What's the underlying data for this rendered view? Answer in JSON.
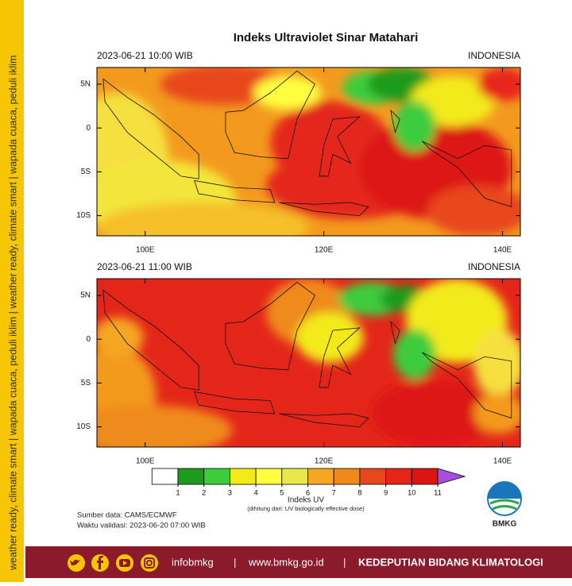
{
  "sidebar": "weather ready, climate smart | wapada cuaca, peduli iklim | weather ready, climate smart | wapada cuaca, peduli iklim",
  "title": "Indeks Ultraviolet Sinar Matahari",
  "panels": [
    {
      "time": "2023-06-21  10:00 WIB",
      "region": "INDONESIA"
    },
    {
      "time": "2023-06-21  11:00 WIB",
      "region": "INDONESIA"
    }
  ],
  "map_axes": {
    "xlim": [
      94.6,
      142
    ],
    "ylim": [
      -12.3,
      6.9
    ],
    "xticks": [
      {
        "value": 100,
        "label": "100E"
      },
      {
        "value": 120,
        "label": "120E"
      },
      {
        "value": 140,
        "label": "140E"
      }
    ],
    "yticks": [
      {
        "value": 5,
        "label": "5N"
      },
      0,
      {
        "value": -5,
        "label": "5S"
      },
      {
        "value": -10,
        "label": "10S"
      }
    ]
  },
  "colorbar": {
    "ticks": [
      1,
      2,
      3,
      4,
      5,
      6,
      7,
      8,
      9,
      10,
      11
    ],
    "colors": [
      "#ffffff",
      "#1e9a1e",
      "#3ccc3c",
      "#f3ea1a",
      "#ffff40",
      "#e8e84a",
      "#f5a623",
      "#ef8a1a",
      "#e8461c",
      "#e4261a",
      "#dd1414"
    ],
    "extend_color": "#a64ee0",
    "label": "Indeks UV",
    "note": "(dihitung dari: UV biologically effective dose)"
  },
  "source": "Sumber data: CAMS/ECMWF",
  "validity": "Waktu validasi: 2023-06-20 07:00 WIB",
  "logo": "BMKG",
  "footer": {
    "social": "infobmkg",
    "separator": "|",
    "website": "www.bmkg.go.id",
    "department": "KEDEPUTIAN BIDANG KLIMATOLOGI"
  }
}
